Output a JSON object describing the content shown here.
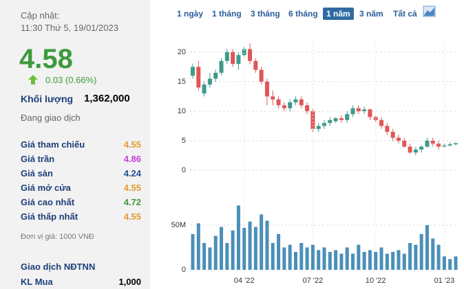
{
  "panel": {
    "update_label": "Cập nhật:",
    "update_time": "11:30 Thứ 5, 19/01/2023",
    "price": "4.58",
    "change": "0.03 (0.66%)",
    "price_color": "#3c9a3c",
    "volume_label": "Khối lượng",
    "volume": "1,362,000",
    "status": "Đang giao dịch",
    "rows": [
      {
        "label": "Giá tham chiếu",
        "value": "4.55",
        "color": "#e59a2f"
      },
      {
        "label": "Giá trần",
        "value": "4.86",
        "color": "#c23fd6"
      },
      {
        "label": "Giá sàn",
        "value": "4.24",
        "color": "#1f4f8f"
      },
      {
        "label": "Giá mở cửa",
        "value": "4.55",
        "color": "#e59a2f"
      },
      {
        "label": "Giá cao nhất",
        "value": "4.72",
        "color": "#3c9a3c"
      },
      {
        "label": "Giá thấp nhất",
        "value": "4.55",
        "color": "#e59a2f"
      }
    ],
    "unit": "Đơn vị giá: 1000 VNĐ",
    "foreign_title": "Giao dịch NĐTNN",
    "buy_label": "KL Mua",
    "buy_value": "1,000"
  },
  "tabs": {
    "items": [
      "1 ngày",
      "1 tháng",
      "3 tháng",
      "6 tháng",
      "1 năm",
      "3 năm",
      "Tất cả"
    ],
    "active": 4
  },
  "chart_data": [
    {
      "type": "candlestick",
      "up_color": "#3f9a8c",
      "down_color": "#e05656",
      "grid": true,
      "categories": [
        null,
        null,
        null,
        null,
        null,
        null,
        null,
        null,
        null,
        "04 '22",
        null,
        null,
        null,
        null,
        null,
        null,
        null,
        null,
        null,
        null,
        null,
        "07 '22",
        null,
        null,
        null,
        null,
        null,
        null,
        null,
        null,
        null,
        null,
        "10 '22",
        null,
        null,
        null,
        null,
        null,
        null,
        null,
        null,
        null,
        null,
        null,
        "01 '23",
        null,
        null
      ],
      "open": [
        16,
        17.5,
        13,
        14.5,
        15.5,
        16.5,
        18.5,
        20,
        18,
        19.5,
        20.5,
        18.5,
        17,
        15,
        12.5,
        12,
        11,
        10.5,
        11.5,
        12,
        11,
        10,
        7,
        7.5,
        8,
        8.3,
        8.8,
        8.5,
        9.5,
        10.5,
        10,
        10.3,
        9,
        8.5,
        7.5,
        6.5,
        5.5,
        5,
        4,
        3,
        3.5,
        4,
        5,
        4.5,
        4,
        4.2,
        4.4
      ],
      "high": [
        18,
        18.5,
        15,
        16.5,
        17,
        19,
        20.5,
        20.5,
        20,
        21,
        21.5,
        19,
        17.5,
        15.5,
        13.5,
        12.5,
        11.5,
        12,
        12.5,
        12.5,
        11.5,
        10.5,
        8,
        8.5,
        9,
        9,
        9.3,
        10,
        11,
        11,
        10.8,
        10.5,
        9.3,
        9,
        8,
        7,
        6,
        5.5,
        4.5,
        4,
        4.2,
        5.5,
        5.5,
        5,
        4.5,
        4.7,
        4.72
      ],
      "low": [
        15.5,
        13.5,
        12.5,
        14,
        15,
        16,
        18,
        17.5,
        17,
        19,
        18,
        16.5,
        14.5,
        11,
        11,
        10.5,
        10,
        10,
        11,
        10.5,
        9.5,
        6.5,
        6.5,
        7,
        7.5,
        8,
        8,
        8,
        9,
        9.5,
        9.5,
        8.5,
        8,
        7,
        6,
        5,
        4.5,
        3.8,
        2.8,
        2.5,
        3,
        3.8,
        4,
        3.5,
        3.8,
        4,
        4.2
      ],
      "close": [
        17.5,
        14,
        14.5,
        15.5,
        16.5,
        18.5,
        20,
        18,
        19.5,
        20.5,
        18.5,
        17,
        15,
        12.5,
        12,
        11,
        10.5,
        11.5,
        12,
        11,
        10,
        7,
        7.5,
        8,
        8.5,
        8.8,
        8.5,
        9.5,
        10.5,
        10,
        10.3,
        9,
        8.5,
        7.5,
        6.5,
        5.5,
        5,
        4,
        3,
        3.5,
        4,
        5,
        4.5,
        4,
        4.2,
        4.4,
        4.58
      ],
      "ylim": [
        0,
        21.5
      ],
      "yticks": [
        0,
        5,
        10,
        15,
        20
      ]
    },
    {
      "type": "bar",
      "color": "#4b8fb8",
      "grid": true,
      "values": [
        40000000,
        52000000,
        30000000,
        25000000,
        38000000,
        48000000,
        30000000,
        44000000,
        72000000,
        47000000,
        54000000,
        48000000,
        62000000,
        55000000,
        30000000,
        40000000,
        25000000,
        28000000,
        20000000,
        30000000,
        25000000,
        28000000,
        22000000,
        25000000,
        20000000,
        22000000,
        18000000,
        25000000,
        18000000,
        28000000,
        20000000,
        22000000,
        20000000,
        25000000,
        18000000,
        20000000,
        22000000,
        18000000,
        30000000,
        28000000,
        40000000,
        50000000,
        35000000,
        28000000,
        15000000,
        12000000,
        15000000
      ],
      "ylim": [
        0,
        83000000
      ],
      "yticks": [
        0,
        {
          "value": 50000000,
          "label": "50M"
        }
      ]
    }
  ]
}
